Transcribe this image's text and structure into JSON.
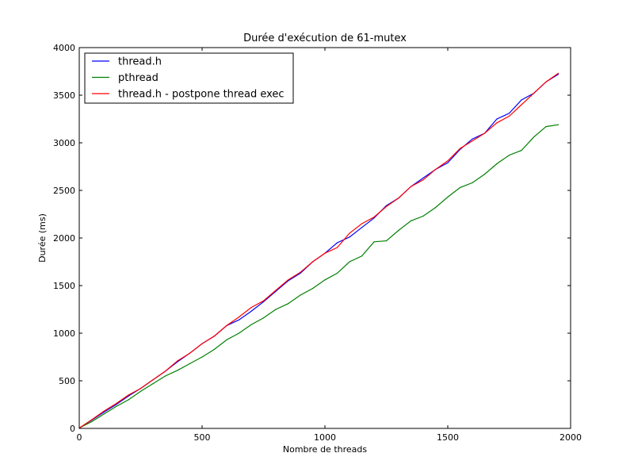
{
  "chart_data": {
    "type": "line",
    "title": "Durée d'exécution de 61-mutex",
    "xlabel": "Nombre de threads",
    "ylabel": "Durée (ms)",
    "xlim": [
      0,
      2000
    ],
    "ylim": [
      0,
      4000
    ],
    "xticks": [
      0,
      500,
      1000,
      1500,
      2000
    ],
    "yticks": [
      0,
      500,
      1000,
      1500,
      2000,
      2500,
      3000,
      3500,
      4000
    ],
    "grid": false,
    "legend_position": "top-left",
    "x": [
      1,
      50,
      100,
      150,
      200,
      250,
      300,
      350,
      400,
      450,
      500,
      550,
      600,
      650,
      700,
      750,
      800,
      850,
      900,
      950,
      1000,
      1050,
      1100,
      1150,
      1200,
      1250,
      1300,
      1350,
      1400,
      1450,
      1500,
      1550,
      1600,
      1650,
      1700,
      1750,
      1800,
      1850,
      1900,
      1950
    ],
    "series": [
      {
        "name": "thread.h",
        "color": "#0000ff",
        "values": [
          5,
          85,
          170,
          250,
          340,
          420,
          510,
          600,
          700,
          790,
          890,
          970,
          1080,
          1140,
          1230,
          1330,
          1440,
          1550,
          1630,
          1750,
          1840,
          1950,
          2010,
          2110,
          2210,
          2340,
          2420,
          2540,
          2630,
          2720,
          2790,
          2930,
          3040,
          3100,
          3250,
          3310,
          3450,
          3520,
          3640,
          3720
        ]
      },
      {
        "name": "pthread",
        "color": "#008000",
        "values": [
          5,
          70,
          150,
          230,
          300,
          390,
          470,
          550,
          610,
          680,
          750,
          830,
          930,
          1000,
          1090,
          1160,
          1250,
          1310,
          1400,
          1470,
          1560,
          1630,
          1750,
          1810,
          1960,
          1970,
          2080,
          2180,
          2230,
          2320,
          2430,
          2530,
          2580,
          2670,
          2780,
          2870,
          2920,
          3060,
          3170,
          3190
        ]
      },
      {
        "name": "thread.h - postpone thread exec",
        "color": "#ff0000",
        "values": [
          5,
          90,
          180,
          260,
          350,
          420,
          510,
          600,
          710,
          790,
          890,
          970,
          1080,
          1170,
          1270,
          1340,
          1450,
          1560,
          1640,
          1750,
          1840,
          1900,
          2050,
          2150,
          2220,
          2330,
          2420,
          2540,
          2610,
          2720,
          2810,
          2940,
          3020,
          3100,
          3210,
          3280,
          3400,
          3520,
          3640,
          3730
        ]
      }
    ]
  }
}
